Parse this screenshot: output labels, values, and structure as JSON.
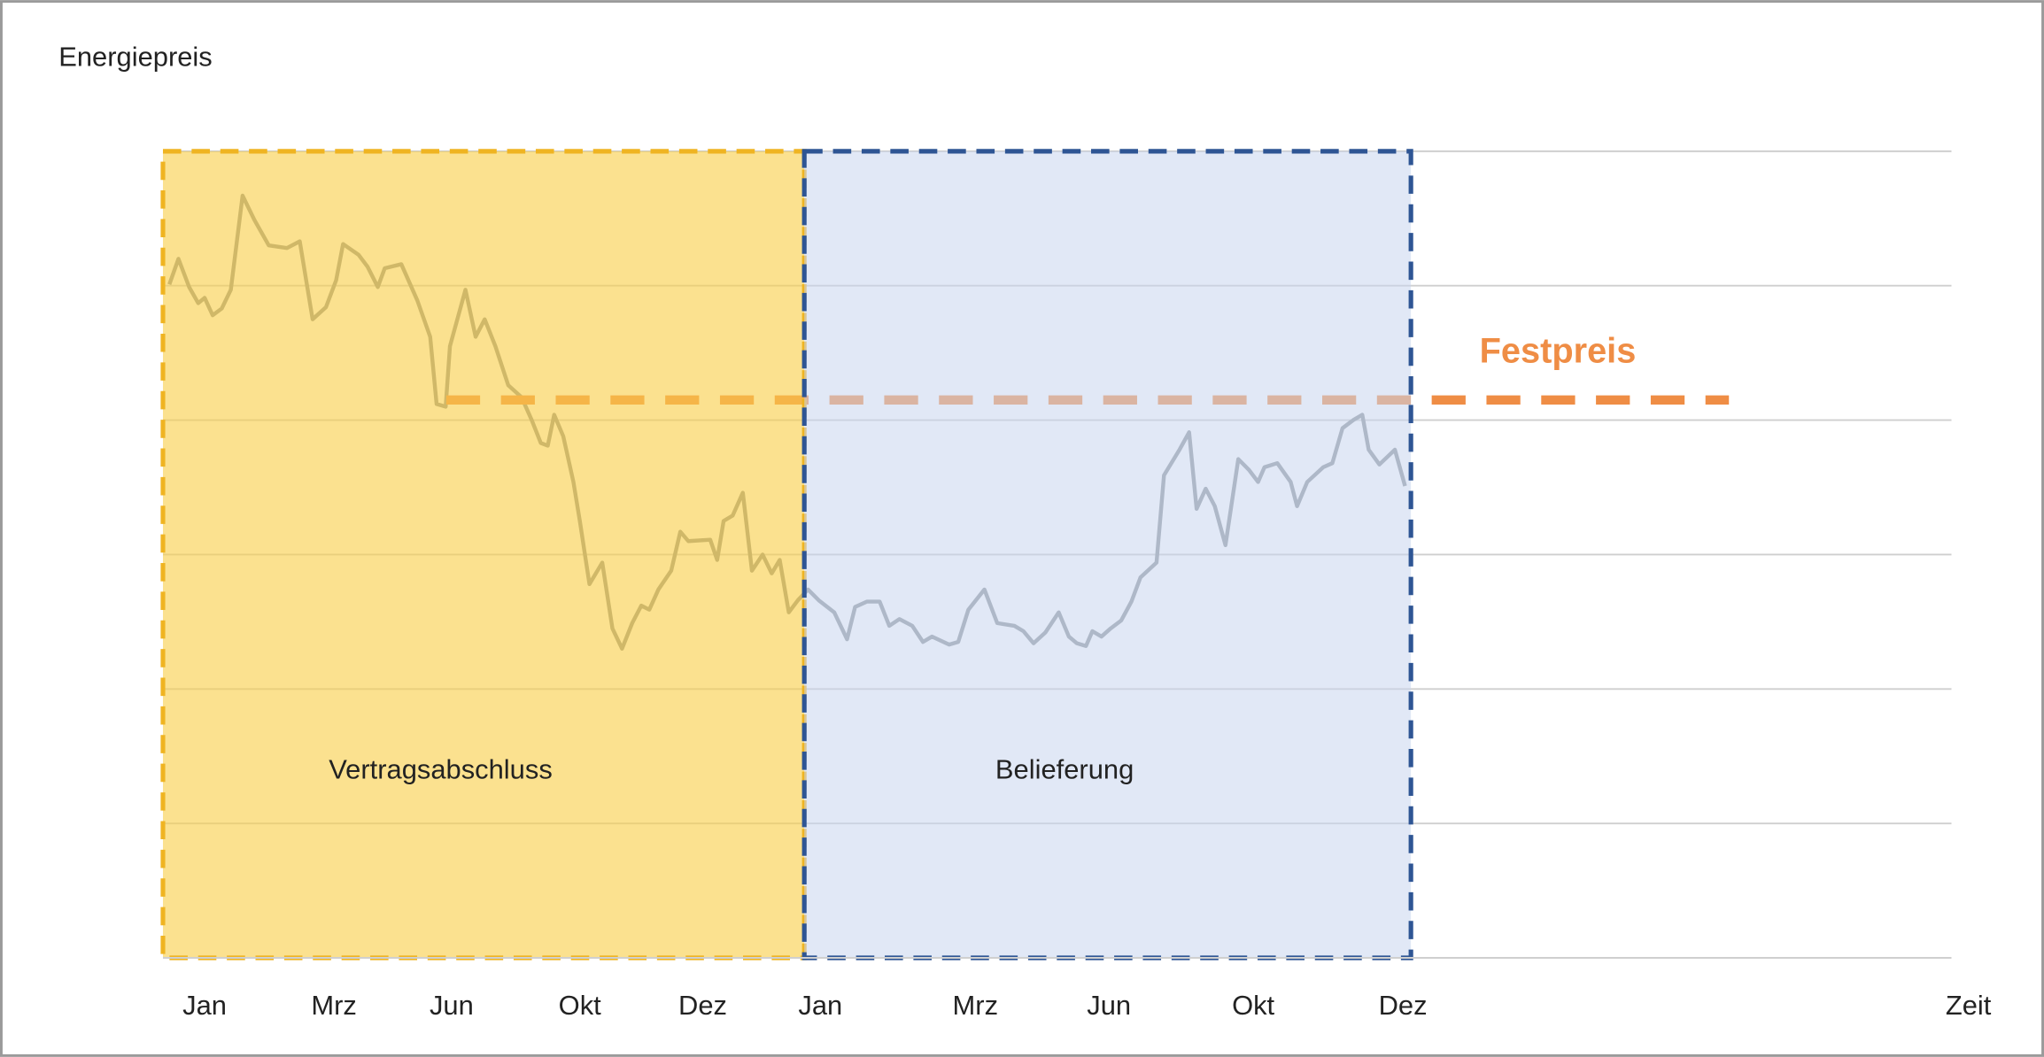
{
  "chart_data": {
    "type": "line",
    "ylabel": "Energiepreis",
    "xlabel": "Zeit",
    "xlim": [
      0,
      33.5
    ],
    "ylim": [
      0,
      6
    ],
    "yticks": [
      0,
      1,
      2,
      3,
      4,
      5,
      6
    ],
    "grid": true,
    "xticks": [
      {
        "value": 0.78,
        "label": "Jan"
      },
      {
        "value": 3.2,
        "label": "Mrz"
      },
      {
        "value": 5.4,
        "label": "Jun"
      },
      {
        "value": 7.8,
        "label": "Okt"
      },
      {
        "value": 10.1,
        "label": "Dez"
      },
      {
        "value": 12.3,
        "label": "Jan"
      },
      {
        "value": 15.2,
        "label": "Mrz"
      },
      {
        "value": 17.7,
        "label": "Jun"
      },
      {
        "value": 20.4,
        "label": "Okt"
      },
      {
        "value": 23.2,
        "label": "Dez"
      }
    ],
    "x": [
      0.12,
      0.29,
      0.49,
      0.66,
      0.78,
      0.93,
      1.1,
      1.27,
      1.49,
      1.71,
      1.98,
      2.32,
      2.56,
      2.8,
      3.05,
      3.24,
      3.37,
      3.66,
      3.83,
      4.02,
      4.15,
      4.46,
      4.76,
      5.0,
      5.12,
      5.29,
      5.37,
      5.66,
      5.85,
      6.02,
      6.22,
      6.46,
      6.71,
      6.9,
      7.07,
      7.2,
      7.32,
      7.49,
      7.68,
      7.8,
      7.98,
      8.22,
      8.41,
      8.59,
      8.78,
      8.95,
      9.1,
      9.27,
      9.51,
      9.68,
      9.83,
      10.24,
      10.37,
      10.49,
      10.66,
      10.85,
      11.02,
      11.22,
      11.39,
      11.54,
      11.71,
      11.88,
      12.07,
      12.27,
      12.56,
      12.8,
      12.95,
      13.17,
      13.41,
      13.59,
      13.78,
      14.02,
      14.22,
      14.39,
      14.71,
      14.88,
      15.07,
      15.37,
      15.61,
      15.93,
      16.1,
      16.29,
      16.51,
      16.76,
      16.95,
      17.1,
      17.27,
      17.39,
      17.56,
      17.73,
      17.93,
      18.12,
      18.29,
      18.59,
      18.73,
      19.02,
      19.2,
      19.34,
      19.51,
      19.68,
      19.88,
      20.12,
      20.32,
      20.49,
      20.61,
      20.85,
      21.1,
      21.22,
      21.41,
      21.71,
      21.88,
      22.07,
      22.27,
      22.44,
      22.56,
      22.76,
      23.05,
      23.24
    ],
    "series": [
      {
        "color": "#8e9499",
        "values": [
          5.01,
          5.2,
          4.99,
          4.87,
          4.91,
          4.78,
          4.83,
          4.97,
          5.67,
          5.49,
          5.3,
          5.28,
          5.33,
          4.75,
          4.84,
          5.04,
          5.31,
          5.23,
          5.14,
          4.99,
          5.13,
          5.16,
          4.89,
          4.62,
          4.12,
          4.1,
          4.55,
          4.97,
          4.62,
          4.75,
          4.55,
          4.26,
          4.17,
          4.0,
          3.83,
          3.81,
          4.04,
          3.88,
          3.54,
          3.25,
          2.78,
          2.94,
          2.45,
          2.3,
          2.49,
          2.62,
          2.59,
          2.74,
          2.88,
          3.17,
          3.1,
          3.11,
          2.96,
          3.25,
          3.29,
          3.46,
          2.88,
          3.0,
          2.86,
          2.96,
          2.57,
          2.66,
          2.74,
          2.66,
          2.57,
          2.37,
          2.61,
          2.65,
          2.65,
          2.47,
          2.52,
          2.47,
          2.35,
          2.39,
          2.33,
          2.35,
          2.59,
          2.74,
          2.49,
          2.47,
          2.43,
          2.34,
          2.42,
          2.57,
          2.39,
          2.34,
          2.32,
          2.43,
          2.39,
          2.45,
          2.51,
          2.65,
          2.83,
          2.94,
          3.59,
          3.78,
          3.91,
          3.34,
          3.49,
          3.36,
          3.07,
          3.71,
          3.63,
          3.54,
          3.65,
          3.68,
          3.54,
          3.36,
          3.54,
          3.65,
          3.68,
          3.94,
          4.0,
          4.04,
          3.78,
          3.67,
          3.78,
          3.51
        ]
      }
    ],
    "regions": [
      {
        "label": "Vertragsabschluss",
        "start": 0,
        "end": 12.0,
        "color": "#f9cf4a",
        "border": "#efb422"
      },
      {
        "label": "Belieferung",
        "start": 12.0,
        "end": 23.35,
        "color": "#c9d6ee",
        "border": "#2e5594"
      }
    ],
    "fixed_price": {
      "label": "Festpreis",
      "value": 4.15,
      "start": 5.3,
      "end": 29.3,
      "color": "#ef8d45"
    }
  }
}
